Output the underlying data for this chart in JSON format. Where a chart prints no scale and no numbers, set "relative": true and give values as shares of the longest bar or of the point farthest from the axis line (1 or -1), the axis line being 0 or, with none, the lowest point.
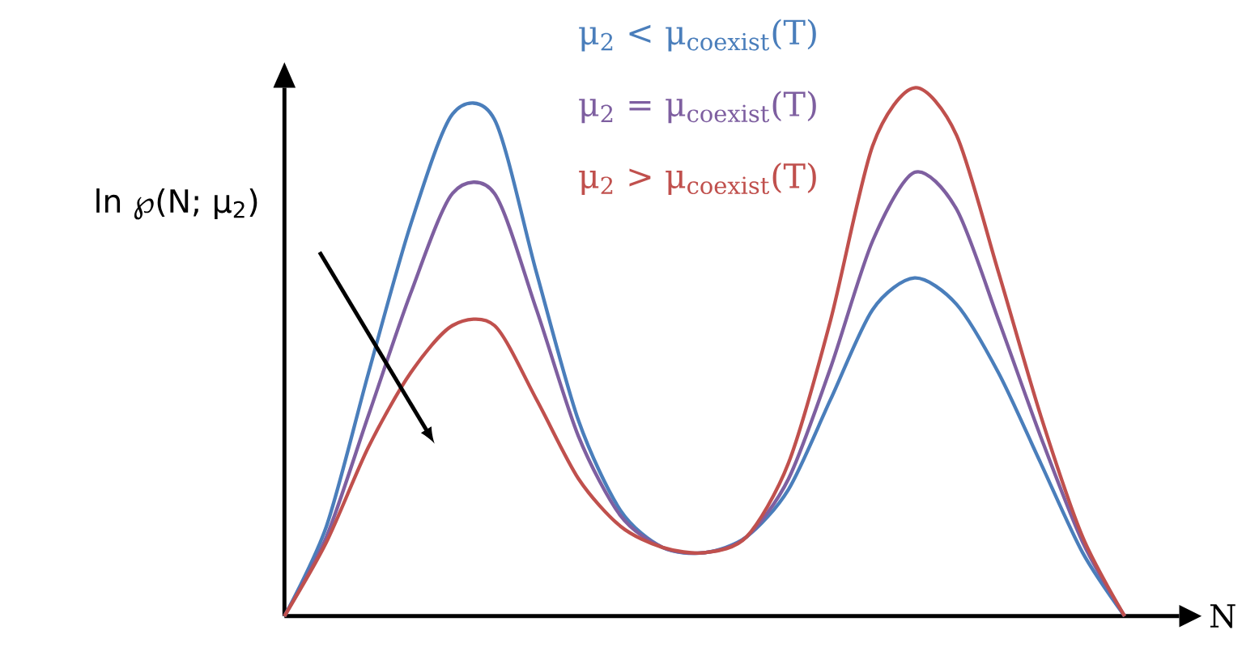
{
  "chart_data": {
    "type": "line",
    "relative": true,
    "xlabel": "N",
    "ylabel": "ln ℘(N; μ$_{2}$)",
    "legend": "top",
    "categories": [
      null,
      null,
      null,
      null,
      null,
      null,
      null,
      null,
      null,
      null,
      null,
      null,
      null,
      null,
      null,
      null,
      null,
      null,
      null,
      null,
      null
    ],
    "series": [
      {
        "name": "μ$_{2}$ < μ$_{coexist}$(T)",
        "color": "#4a7ebb",
        "values": [
          0,
          0.17,
          0.46,
          0.74,
          0.95,
          0.94,
          0.65,
          0.37,
          0.2,
          0.13,
          0.12,
          0.15,
          0.24,
          0.41,
          0.58,
          0.64,
          0.59,
          0.46,
          0.29,
          0.12,
          0
        ]
      },
      {
        "name": "μ$_{2}$ = μ$_{coexist}$(T)",
        "color": "#7e5fa0",
        "values": [
          0,
          0.15,
          0.38,
          0.61,
          0.8,
          0.8,
          0.58,
          0.34,
          0.19,
          0.13,
          0.12,
          0.15,
          0.26,
          0.47,
          0.71,
          0.84,
          0.77,
          0.56,
          0.34,
          0.14,
          0
        ]
      },
      {
        "name": "μ$_{2}$ > μ$_{coexist}$(T)",
        "color": "#c0504d",
        "values": [
          0,
          0.14,
          0.32,
          0.46,
          0.55,
          0.55,
          0.41,
          0.26,
          0.17,
          0.13,
          0.12,
          0.15,
          0.29,
          0.56,
          0.89,
          1,
          0.91,
          0.65,
          0.38,
          0.15,
          0
        ]
      }
    ]
  }
}
